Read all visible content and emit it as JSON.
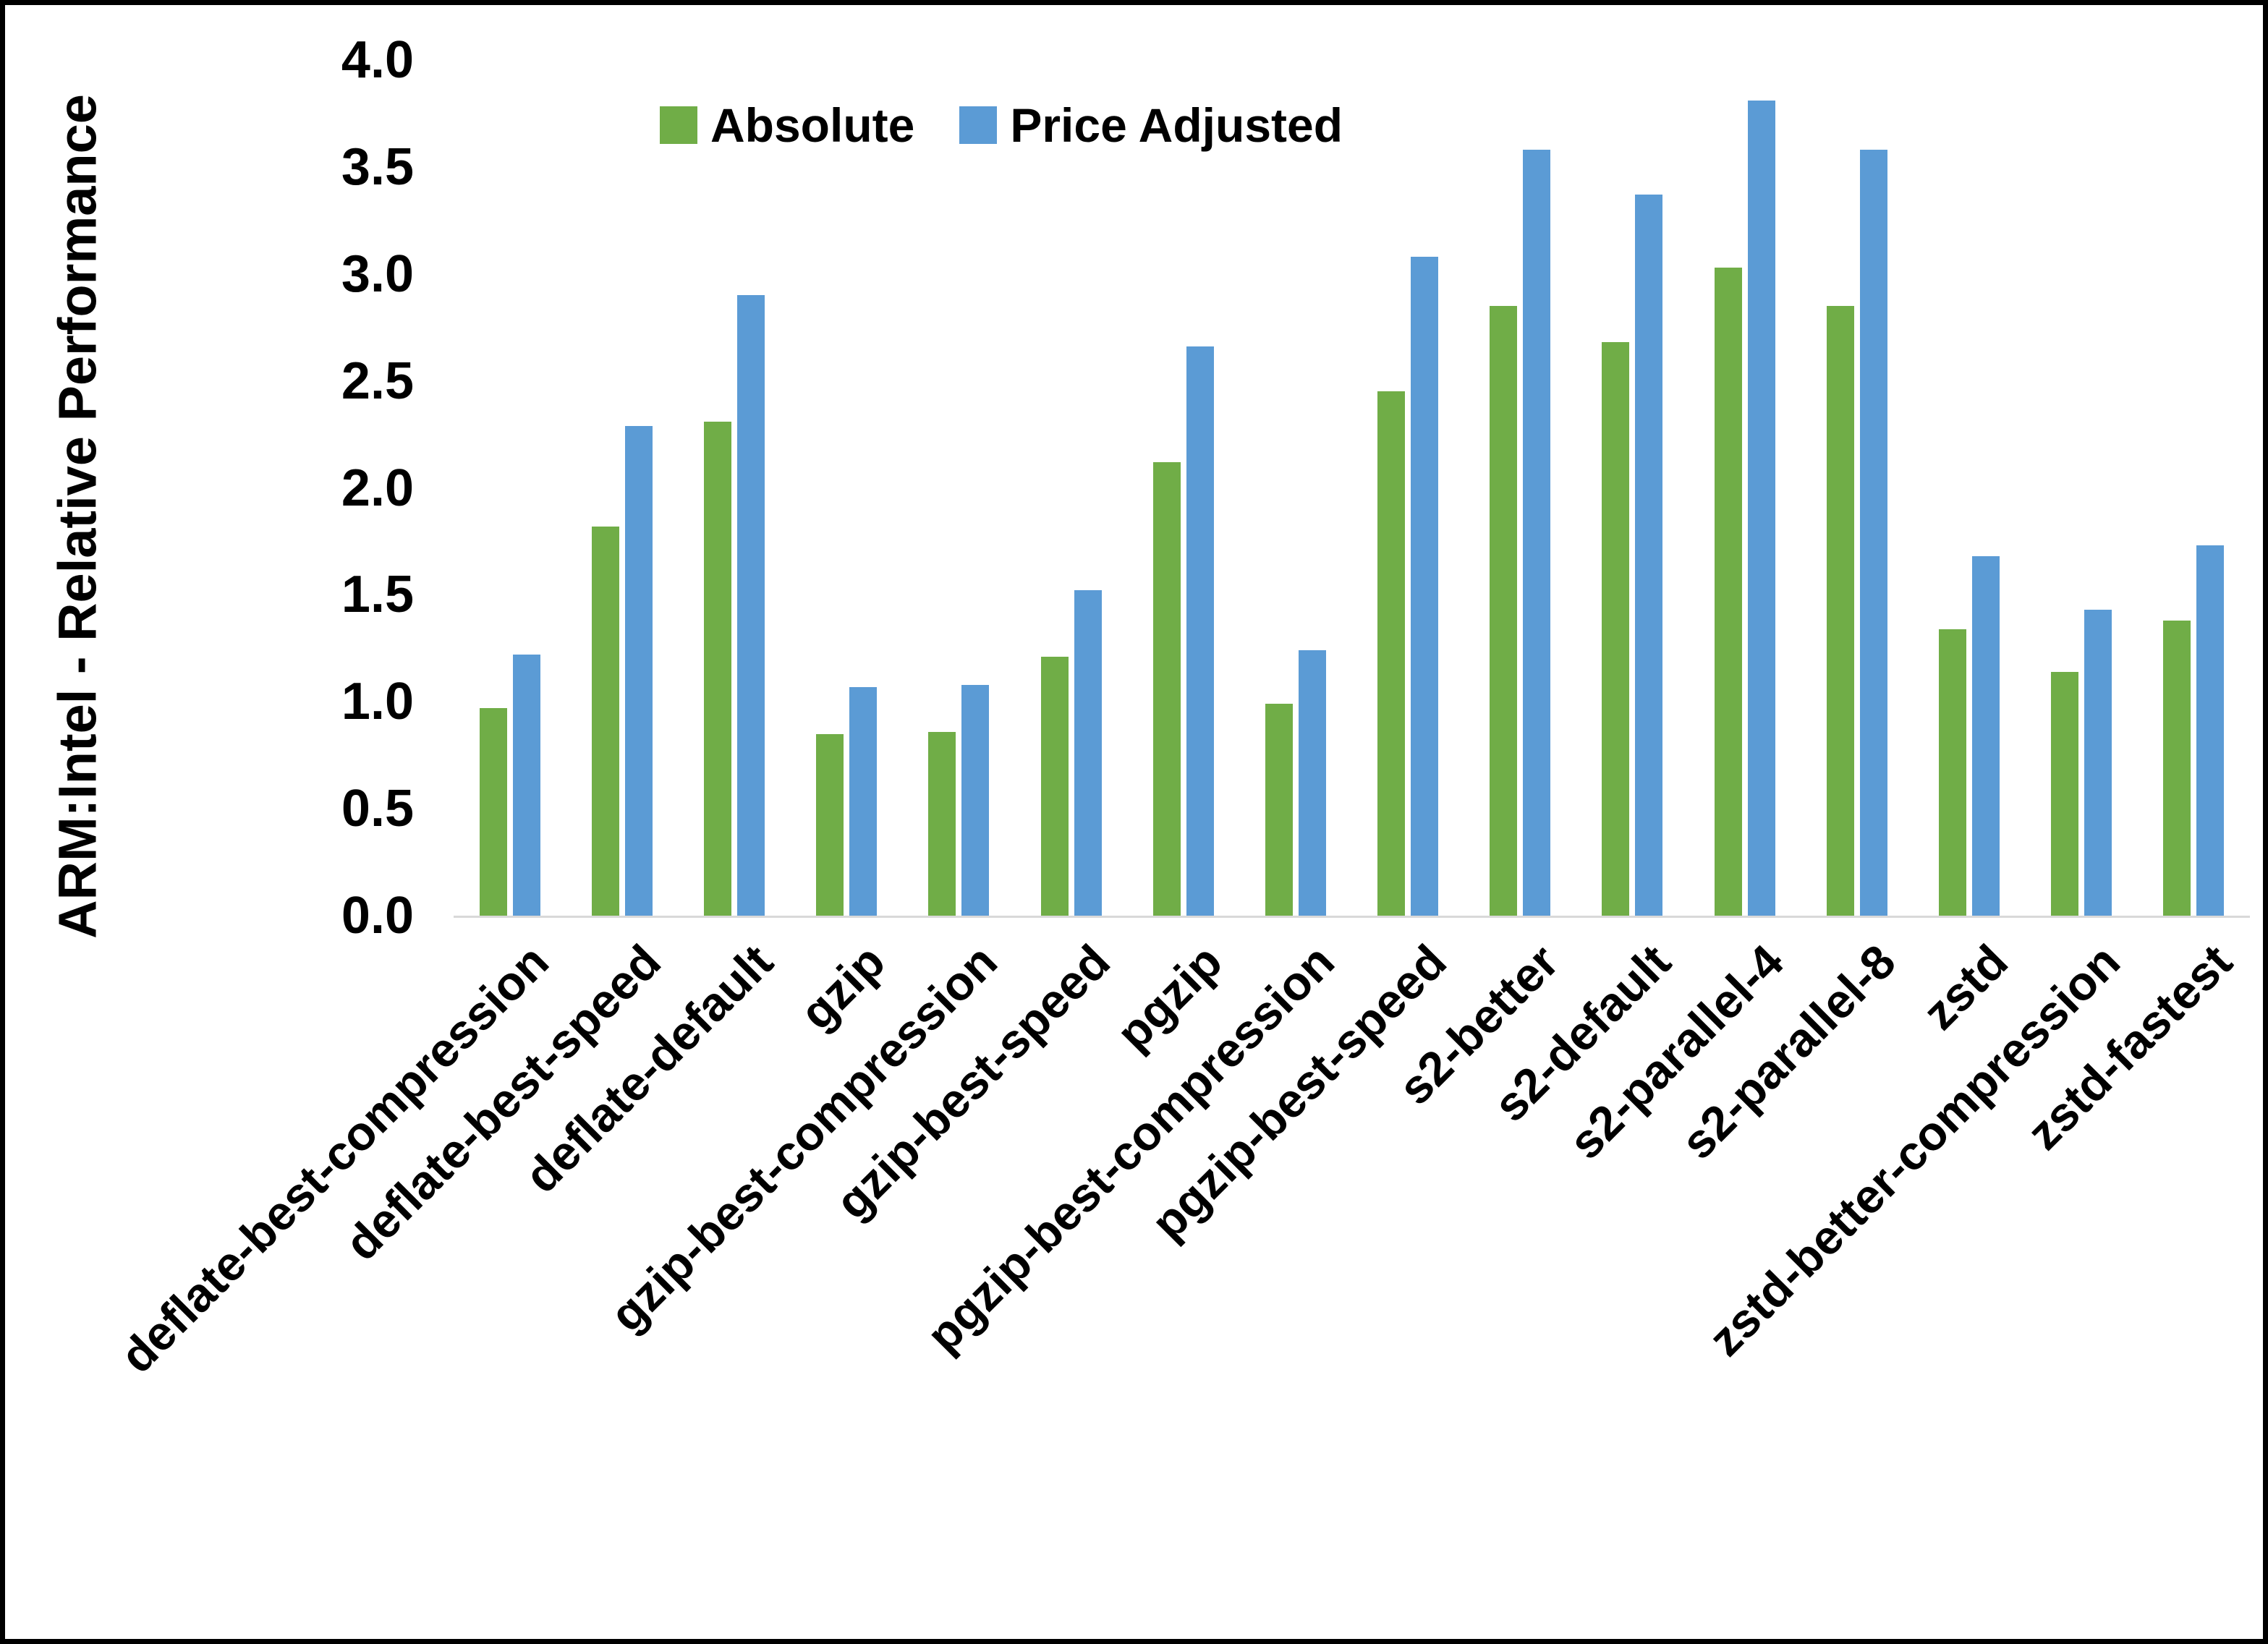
{
  "frame": {
    "background": "#FFFFFF",
    "border_color": "#000000"
  },
  "chart_data": {
    "type": "bar",
    "title": "",
    "ylabel": "ARM:Intel - Relative Performance",
    "xlabel": "",
    "ylim": [
      0.0,
      4.0
    ],
    "yticks": [
      "0.0",
      "0.5",
      "1.0",
      "1.5",
      "2.0",
      "2.5",
      "3.0",
      "3.5",
      "4.0"
    ],
    "grid": false,
    "legend_position": "top-center-inside",
    "baseline_color": "#D9D9D9",
    "categories": [
      "deflate-best-compression",
      "deflate-best-speed",
      "deflate-default",
      "gzip",
      "gzip-best-compression",
      "gzip-best-speed",
      "pgzip",
      "pgzip-best-compression",
      "pgzip-best-speed",
      "s2-better",
      "s2-default",
      "s2-parallel-4",
      "s2-parallel-8",
      "zstd",
      "zstd-better-compression",
      "zstd-fastest"
    ],
    "series": [
      {
        "name": "Absolute",
        "color": "#70AD47",
        "values": [
          0.97,
          1.82,
          2.31,
          0.85,
          0.86,
          1.21,
          2.12,
          0.99,
          2.45,
          2.85,
          2.68,
          3.03,
          2.85,
          1.34,
          1.14,
          1.38
        ]
      },
      {
        "name": "Price Adjusted",
        "color": "#5B9BD5",
        "values": [
          1.22,
          2.29,
          2.9,
          1.07,
          1.08,
          1.52,
          2.66,
          1.24,
          3.08,
          3.58,
          3.37,
          3.81,
          3.58,
          1.68,
          1.43,
          1.73
        ]
      }
    ]
  }
}
